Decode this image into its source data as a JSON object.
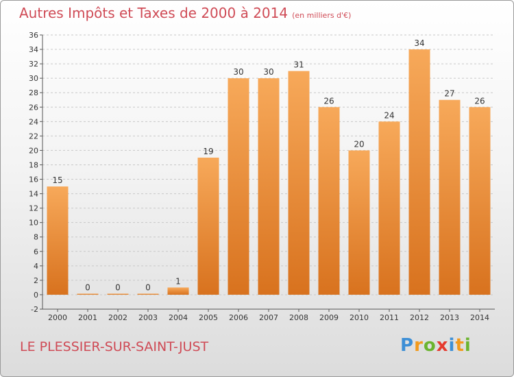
{
  "title": "Autres Impôts et Taxes de 2000 à 2014",
  "subtitle": "(en milliers d'€)",
  "commune": "LE PLESSIER-SUR-SAINT-JUST",
  "logo": {
    "letters": [
      "P",
      "r",
      "o",
      "x",
      "i",
      "t",
      "i"
    ],
    "colors": [
      "#3d8fd6",
      "#f29a1c",
      "#6bb42f",
      "#e53a2e",
      "#3d8fd6",
      "#f29a1c",
      "#6bb42f"
    ]
  },
  "colors": {
    "bar_light": "#f7a95a",
    "bar_dark": "#d8721e",
    "grid": "#c8c8c8",
    "axis": "#555555"
  },
  "chart_data": {
    "type": "bar",
    "categories": [
      "2000",
      "2001",
      "2002",
      "2003",
      "2004",
      "2005",
      "2006",
      "2007",
      "2008",
      "2009",
      "2010",
      "2011",
      "2012",
      "2013",
      "2014"
    ],
    "values": [
      15,
      0,
      0,
      0,
      1,
      19,
      30,
      30,
      31,
      26,
      20,
      24,
      34,
      27,
      26
    ],
    "data_labels": [
      "15",
      "0",
      "0",
      "0",
      "1",
      "19",
      "30",
      "30",
      "31",
      "26",
      "20",
      "24",
      "34",
      "27",
      "26"
    ],
    "yticks": [
      -2,
      0,
      2,
      4,
      6,
      8,
      10,
      12,
      14,
      16,
      18,
      20,
      22,
      24,
      26,
      28,
      30,
      32,
      34,
      36
    ],
    "ylim": [
      -2,
      36
    ],
    "title": "Autres Impôts et Taxes de 2000 à 2014",
    "xlabel": "",
    "ylabel": "",
    "grid": true,
    "legend": "none"
  }
}
